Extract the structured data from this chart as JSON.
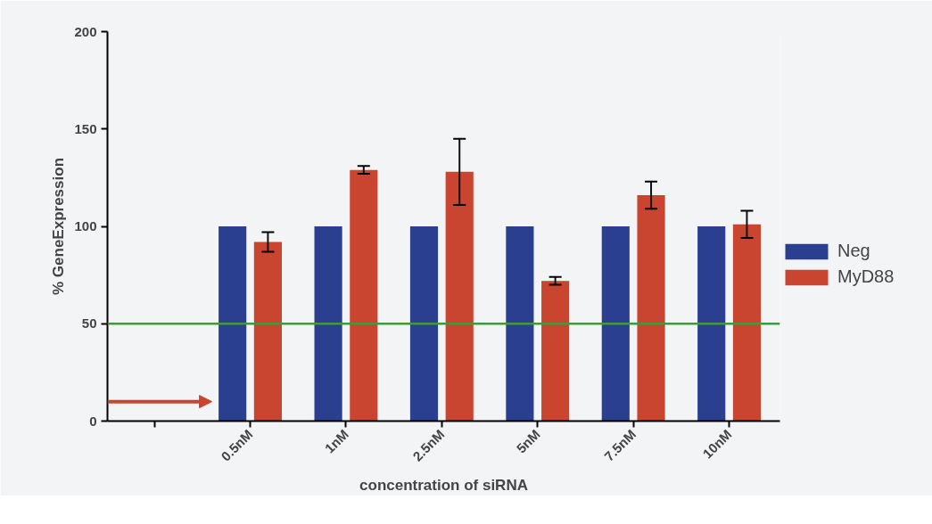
{
  "chart_data": {
    "type": "bar",
    "xlabel": "concentration of siRNA",
    "ylabel": "% GeneExpression",
    "categories": [
      null,
      "0.5nM",
      "1nM",
      "2.5nM",
      "5nM",
      "7.5nM",
      "10nM"
    ],
    "series": [
      {
        "name": "Neg",
        "color": "#2b3f91",
        "values": [
          null,
          100,
          100,
          100,
          100,
          100,
          100
        ]
      },
      {
        "name": "MyD88",
        "color": "#c9452f",
        "values": [
          null,
          92,
          129,
          128,
          72,
          116,
          101
        ],
        "errors": [
          null,
          5,
          2,
          17,
          2,
          7,
          7
        ]
      }
    ],
    "ylim": [
      0,
      200
    ],
    "yticks": [
      0,
      50,
      100,
      150,
      200
    ],
    "ref_lines": [
      {
        "axis": "y",
        "value": 50,
        "color": "#3f9a3a"
      }
    ],
    "grid": false,
    "legend": "right"
  }
}
